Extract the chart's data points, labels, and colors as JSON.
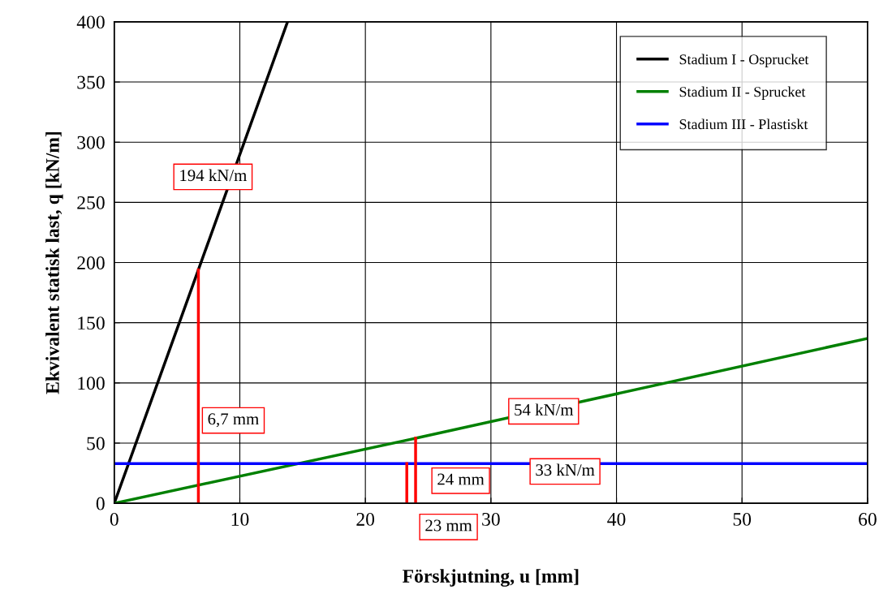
{
  "chart_data": {
    "type": "line",
    "xlabel": "Förskjutning, u [mm]",
    "ylabel": "Ekvivalent statisk last, q [kN/m]",
    "xlim": [
      0,
      60
    ],
    "ylim": [
      0,
      400
    ],
    "xticks": [
      0,
      10,
      20,
      30,
      40,
      50,
      60
    ],
    "yticks": [
      0,
      50,
      100,
      150,
      200,
      250,
      300,
      350,
      400
    ],
    "grid": true,
    "legend": "top right",
    "marker": "none",
    "line_style": "solid",
    "series": [
      {
        "name": "Stadium I - Osprucket",
        "color": "#000000",
        "x": [
          0,
          6.7,
          13.8
        ],
        "values": [
          0,
          194,
          400
        ]
      },
      {
        "name": "Stadium II - Sprucket",
        "color": "#008000",
        "x": [
          0,
          24,
          60
        ],
        "values": [
          0,
          54,
          137
        ]
      },
      {
        "name": "Stadium III - Plastiskt",
        "color": "#0000ff",
        "x": [
          0,
          60
        ],
        "values": [
          33,
          33
        ]
      },
      {
        "color": "#ff0000",
        "x": [
          6.7,
          6.7
        ],
        "values": [
          0,
          194
        ]
      },
      {
        "color": "#ff0000",
        "x": [
          24,
          24
        ],
        "values": [
          0,
          54
        ]
      },
      {
        "color": "#ff0000",
        "x": [
          23.3,
          23.3
        ],
        "values": [
          0,
          33
        ]
      }
    ],
    "annotations": [
      "194 kN/m",
      "6,7 mm",
      "54 kN/m",
      {
        "text": "24 mm",
        "x": 24,
        "y": 0
      },
      {
        "text": "23 mm",
        "x": 23.3,
        "y": 0
      },
      {
        "text": "33 kN/m",
        "x": 35.9,
        "y": 33
      }
    ]
  }
}
